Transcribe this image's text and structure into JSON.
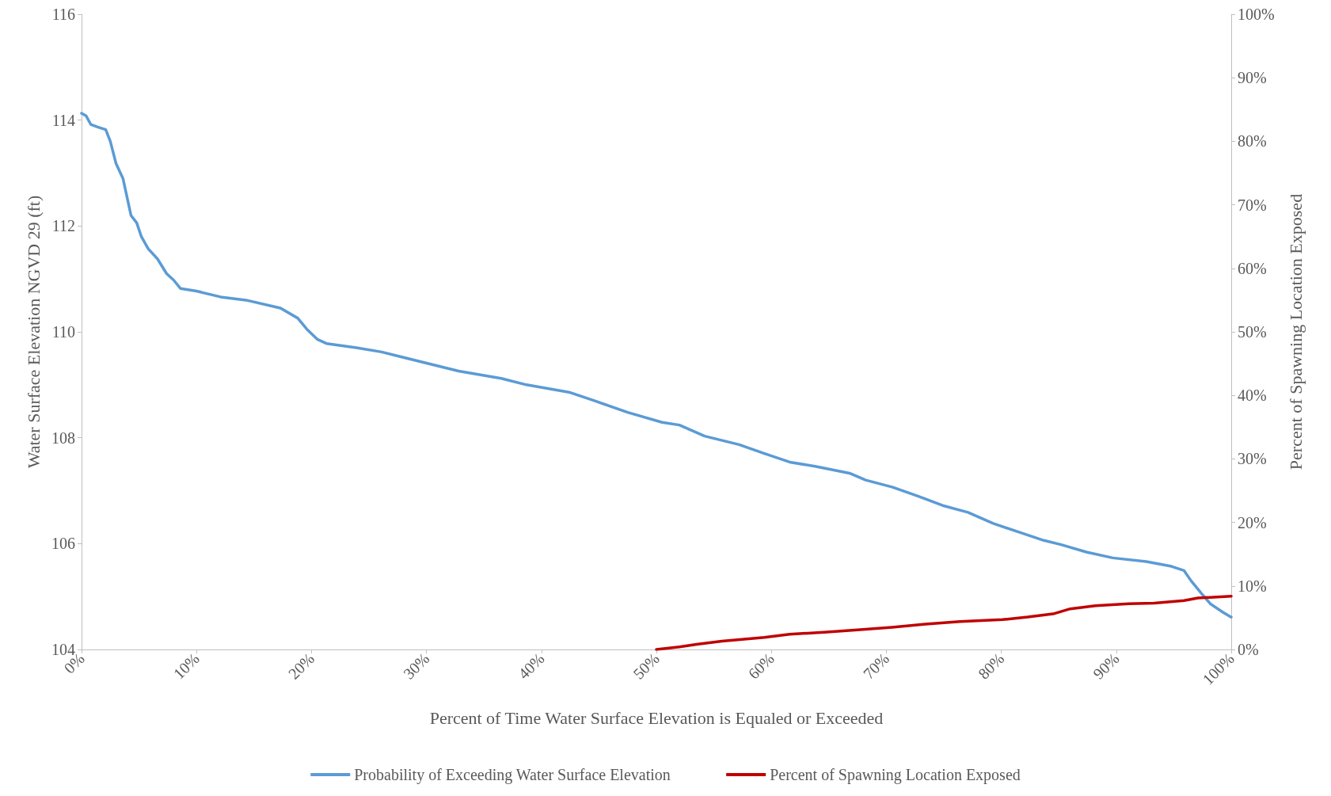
{
  "chart_data": {
    "type": "line",
    "xlabel": "Percent of Time Water Surface Elevation is Equaled or Exceeded",
    "ylabel": "Water Surface Elevation NGVD 29 (ft)",
    "y2label": "Percent of Spawning Location Exposed",
    "xlim": [
      0,
      100
    ],
    "xticks": [
      {
        "value": 0,
        "label": "0%"
      },
      {
        "value": 10,
        "label": "10%"
      },
      {
        "value": 20,
        "label": "20%"
      },
      {
        "value": 30,
        "label": "30%"
      },
      {
        "value": 40,
        "label": "40%"
      },
      {
        "value": 50,
        "label": "50%"
      },
      {
        "value": 60,
        "label": "60%"
      },
      {
        "value": 70,
        "label": "70%"
      },
      {
        "value": 80,
        "label": "80%"
      },
      {
        "value": 90,
        "label": "90%"
      },
      {
        "value": 100,
        "label": "100%"
      }
    ],
    "ylim": [
      104,
      116
    ],
    "yticks": [
      104,
      106,
      108,
      110,
      112,
      114,
      116
    ],
    "y2lim": [
      0,
      100
    ],
    "y2ticks": [
      {
        "value": 0,
        "label": "0%"
      },
      {
        "value": 10,
        "label": "10%"
      },
      {
        "value": 20,
        "label": "20%"
      },
      {
        "value": 30,
        "label": "30%"
      },
      {
        "value": 40,
        "label": "40%"
      },
      {
        "value": 50,
        "label": "50%"
      },
      {
        "value": 60,
        "label": "60%"
      },
      {
        "value": 70,
        "label": "70%"
      },
      {
        "value": 80,
        "label": "80%"
      },
      {
        "value": 90,
        "label": "90%"
      },
      {
        "value": 100,
        "label": "100%"
      }
    ],
    "grid": false,
    "legend": "bottom",
    "marker": "none",
    "line_style": "solid",
    "series": [
      {
        "name": "Probability of Exceeding Water Surface Elevation",
        "color": "#5b9bd5",
        "x": [
          0,
          0.4,
          0.8,
          1.4,
          2.1,
          2.5,
          3.0,
          3.6,
          4.0,
          4.3,
          4.8,
          5.2,
          5.8,
          6.6,
          7.4,
          8.0,
          8.6,
          10.0,
          12.1,
          14.3,
          17.3,
          18.8,
          19.6,
          20.5,
          21.3,
          23.9,
          26.1,
          29.8,
          32.8,
          36.5,
          38.7,
          42.4,
          44.6,
          47.5,
          50.5,
          52.0,
          54.2,
          57.2,
          59.4,
          61.6,
          63.8,
          66.8,
          68.2,
          70.5,
          72.7,
          74.9,
          77.1,
          79.3,
          81.5,
          83.7,
          85.2,
          87.4,
          89.7,
          92.6,
          94.8,
          95.9,
          96.5,
          97.4,
          98.2,
          99.3,
          100
        ],
        "values": [
          114.13,
          114.08,
          113.92,
          113.87,
          113.82,
          113.6,
          113.18,
          112.9,
          112.5,
          112.2,
          112.06,
          111.8,
          111.57,
          111.38,
          111.1,
          110.98,
          110.82,
          110.77,
          110.66,
          110.6,
          110.45,
          110.26,
          110.05,
          109.86,
          109.78,
          109.7,
          109.62,
          109.42,
          109.26,
          109.12,
          109.0,
          108.86,
          108.7,
          108.48,
          108.29,
          108.24,
          108.03,
          107.87,
          107.7,
          107.54,
          107.46,
          107.33,
          107.2,
          107.07,
          106.9,
          106.72,
          106.59,
          106.38,
          106.22,
          106.06,
          105.98,
          105.84,
          105.73,
          105.66,
          105.57,
          105.49,
          105.3,
          105.06,
          104.86,
          104.7,
          104.61
        ]
      },
      {
        "name": "Percent of Spawning Location Exposed",
        "color": "#c00000",
        "axis": "y2",
        "x": [
          50,
          52,
          53.5,
          55.7,
          59.4,
          61.6,
          64.6,
          67.5,
          70.5,
          73.4,
          76.4,
          80.1,
          82.3,
          84.5,
          86.0,
          88.2,
          91.1,
          93.3,
          95.9,
          97.1,
          100
        ],
        "values": [
          0,
          0.4,
          0.8,
          1.3,
          1.9,
          2.4,
          2.7,
          3.1,
          3.5,
          4.0,
          4.4,
          4.7,
          5.1,
          5.6,
          6.4,
          6.9,
          7.2,
          7.3,
          7.7,
          8.1,
          8.4
        ]
      }
    ]
  }
}
